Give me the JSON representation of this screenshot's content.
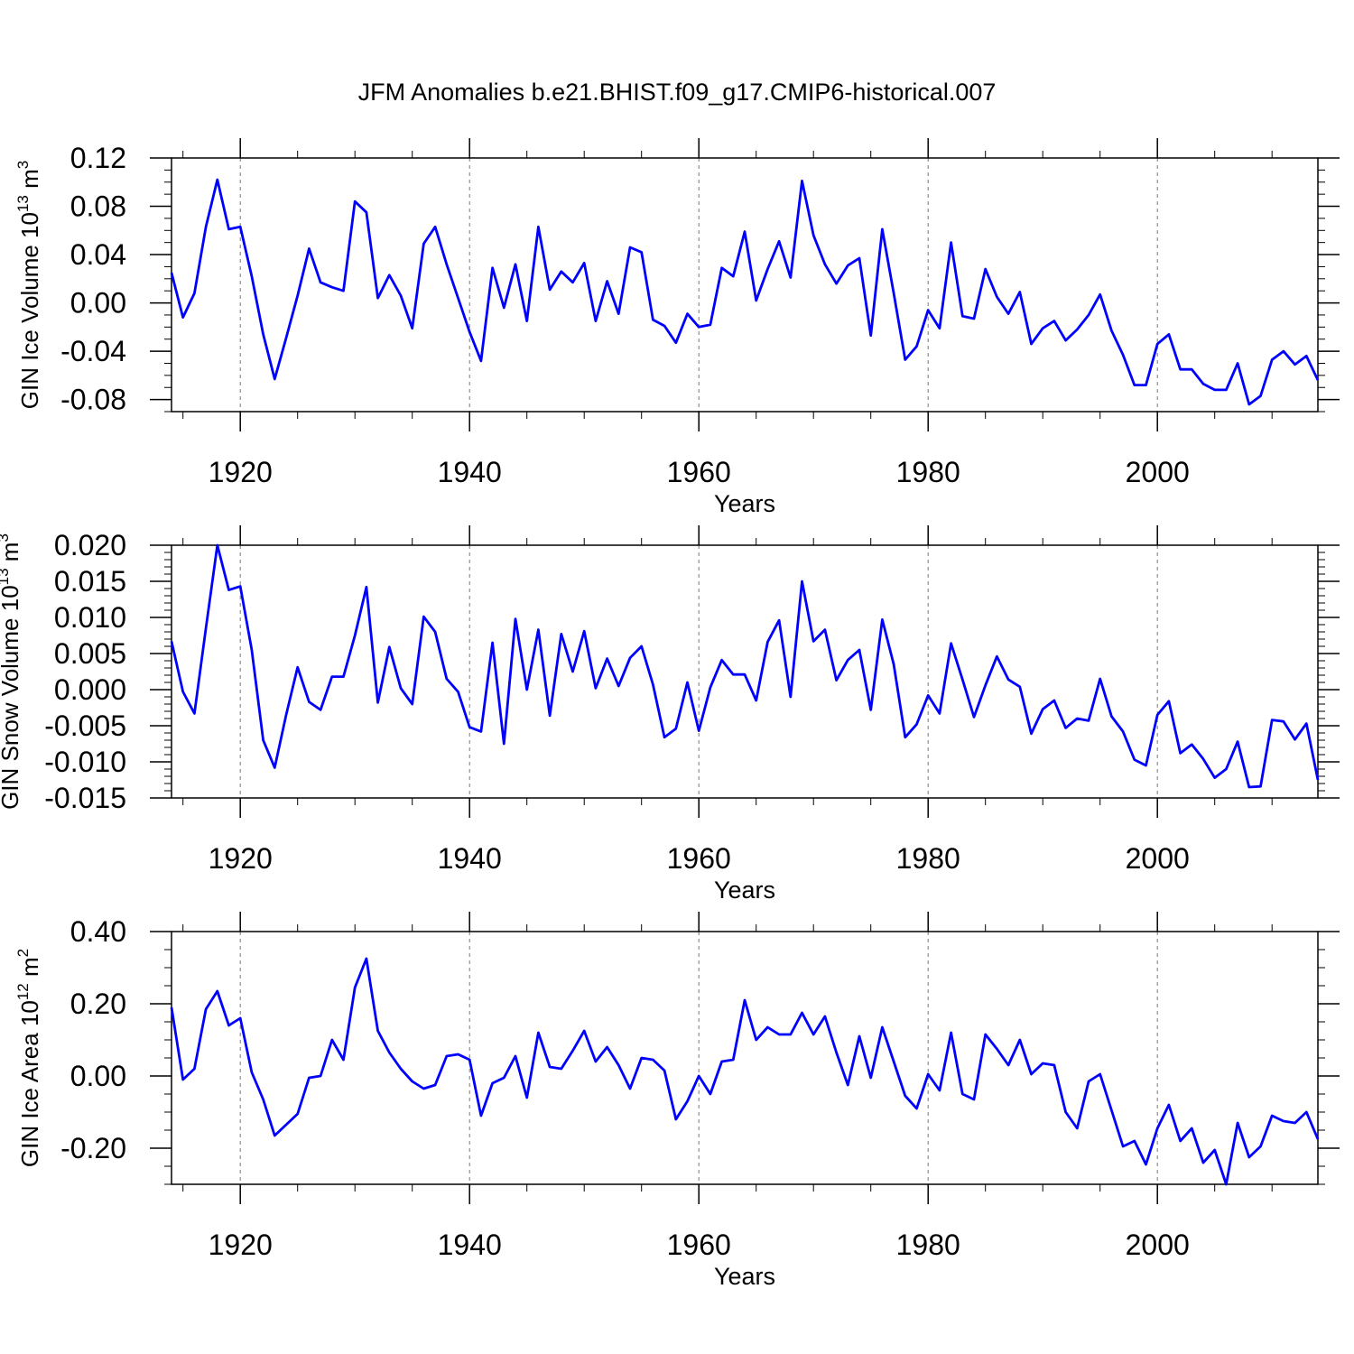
{
  "figure_title": "JFM Anomalies b.e21.BHIST.f09_g17.CMIP6-historical.007",
  "line_color": "#0000ff",
  "chart_data": [
    {
      "type": "line",
      "title": "JFM Anomalies b.e21.BHIST.f09_g17.CMIP6-historical.007",
      "xlabel": "Years",
      "ylabel": "GIN Ice Volume 10",
      "ylabel_exp": "13",
      "ylabel_unit": " m",
      "ylabel_unit_exp": "3",
      "xlim": [
        1914,
        2014
      ],
      "ylim": [
        -0.09,
        0.12
      ],
      "yticks": [
        0.12,
        0.08,
        0.04,
        0.0,
        -0.04,
        -0.08
      ],
      "ytick_labels": [
        "0.12",
        "0.08",
        "0.04",
        "0.00",
        "-0.04",
        "-0.08"
      ],
      "xticks": [
        1920,
        1940,
        1960,
        1980,
        2000
      ],
      "xtick_labels": [
        "1920",
        "1940",
        "1960",
        "1980",
        "2000"
      ],
      "grid": "dashed vertical at major x ticks",
      "series": [
        {
          "name": "GIN Ice Volume",
          "x": [
            1914,
            1915,
            1916,
            1917,
            1918,
            1919,
            1920,
            1921,
            1922,
            1923,
            1924,
            1925,
            1926,
            1927,
            1928,
            1929,
            1930,
            1931,
            1932,
            1933,
            1934,
            1935,
            1936,
            1937,
            1938,
            1939,
            1940,
            1941,
            1942,
            1943,
            1944,
            1945,
            1946,
            1947,
            1948,
            1949,
            1950,
            1951,
            1952,
            1953,
            1954,
            1955,
            1956,
            1957,
            1958,
            1959,
            1960,
            1961,
            1962,
            1963,
            1964,
            1965,
            1966,
            1967,
            1968,
            1969,
            1970,
            1971,
            1972,
            1973,
            1974,
            1975,
            1976,
            1977,
            1978,
            1979,
            1980,
            1981,
            1982,
            1983,
            1984,
            1985,
            1986,
            1987,
            1988,
            1989,
            1990,
            1991,
            1992,
            1993,
            1994,
            1995,
            1996,
            1997,
            1998,
            1999,
            2000,
            2001,
            2002,
            2003,
            2004,
            2005,
            2006,
            2007,
            2008,
            2009,
            2010,
            2011,
            2012,
            2013,
            2014
          ],
          "values": [
            0.025,
            -0.012,
            0.008,
            0.063,
            0.102,
            0.061,
            0.063,
            0.022,
            -0.026,
            -0.063,
            -0.029,
            0.006,
            0.045,
            0.017,
            0.013,
            0.01,
            0.084,
            0.075,
            0.004,
            0.023,
            0.006,
            -0.021,
            0.049,
            0.063,
            0.032,
            0.004,
            -0.024,
            -0.048,
            0.029,
            -0.004,
            0.032,
            -0.015,
            0.063,
            0.011,
            0.026,
            0.017,
            0.033,
            -0.015,
            0.018,
            -0.009,
            0.046,
            0.042,
            -0.014,
            -0.019,
            -0.033,
            -0.009,
            -0.02,
            -0.018,
            0.029,
            0.022,
            0.059,
            0.002,
            0.028,
            0.051,
            0.021,
            0.101,
            0.056,
            0.032,
            0.016,
            0.031,
            0.037,
            -0.027,
            0.061,
            0.008,
            -0.047,
            -0.036,
            -0.006,
            -0.021,
            0.05,
            -0.011,
            -0.013,
            0.028,
            0.005,
            -0.009,
            0.009,
            -0.034,
            -0.021,
            -0.015,
            -0.031,
            -0.022,
            -0.01,
            0.007,
            -0.023,
            -0.043,
            -0.068,
            -0.068,
            -0.034,
            -0.026,
            -0.055,
            -0.055,
            -0.067,
            -0.072,
            -0.072,
            -0.05,
            -0.084,
            -0.077,
            -0.047,
            -0.04,
            -0.051,
            -0.044,
            -0.064
          ]
        }
      ]
    },
    {
      "type": "line",
      "xlabel": "Years",
      "ylabel": "GIN Snow Volume 10",
      "ylabel_exp": "13",
      "ylabel_unit": " m",
      "ylabel_unit_exp": "3",
      "xlim": [
        1914,
        2014
      ],
      "ylim": [
        -0.015,
        0.02
      ],
      "yticks": [
        0.02,
        0.015,
        0.01,
        0.005,
        0.0,
        -0.005,
        -0.01,
        -0.015
      ],
      "ytick_labels": [
        "0.020",
        "0.015",
        "0.010",
        "0.005",
        "0.000",
        "-0.005",
        "-0.010",
        "-0.015"
      ],
      "xticks": [
        1920,
        1940,
        1960,
        1980,
        2000
      ],
      "xtick_labels": [
        "1920",
        "1940",
        "1960",
        "1980",
        "2000"
      ],
      "grid": "dashed vertical at major x ticks",
      "series": [
        {
          "name": "GIN Snow Volume",
          "x": [
            1914,
            1915,
            1916,
            1917,
            1918,
            1919,
            1920,
            1921,
            1922,
            1923,
            1924,
            1925,
            1926,
            1927,
            1928,
            1929,
            1930,
            1931,
            1932,
            1933,
            1934,
            1935,
            1936,
            1937,
            1938,
            1939,
            1940,
            1941,
            1942,
            1943,
            1944,
            1945,
            1946,
            1947,
            1948,
            1949,
            1950,
            1951,
            1952,
            1953,
            1954,
            1955,
            1956,
            1957,
            1958,
            1959,
            1960,
            1961,
            1962,
            1963,
            1964,
            1965,
            1966,
            1967,
            1968,
            1969,
            1970,
            1971,
            1972,
            1973,
            1974,
            1975,
            1976,
            1977,
            1978,
            1979,
            1980,
            1981,
            1982,
            1983,
            1984,
            1985,
            1986,
            1987,
            1988,
            1989,
            1990,
            1991,
            1992,
            1993,
            1994,
            1995,
            1996,
            1997,
            1998,
            1999,
            2000,
            2001,
            2002,
            2003,
            2004,
            2005,
            2006,
            2007,
            2008,
            2009,
            2010,
            2011,
            2012,
            2013,
            2014
          ],
          "values": [
            0.0067,
            -0.0003,
            -0.0033,
            0.0085,
            0.02,
            0.0138,
            0.0143,
            0.0055,
            -0.007,
            -0.0108,
            -0.0035,
            0.0031,
            -0.0017,
            -0.0028,
            0.0018,
            0.0018,
            0.0075,
            0.0142,
            -0.0018,
            0.0059,
            0.0002,
            -0.002,
            0.0101,
            0.008,
            0.0015,
            -0.0003,
            -0.0052,
            -0.0058,
            0.0065,
            -0.0075,
            0.0098,
            0.0,
            0.0083,
            -0.0036,
            0.0077,
            0.0025,
            0.0081,
            0.0002,
            0.0043,
            0.0005,
            0.0044,
            0.006,
            0.0007,
            -0.0066,
            -0.0054,
            0.001,
            -0.0057,
            0.0003,
            0.0041,
            0.0021,
            0.0021,
            -0.0015,
            0.0066,
            0.0096,
            -0.001,
            0.015,
            0.0067,
            0.0083,
            0.0013,
            0.0041,
            0.0055,
            -0.0028,
            0.0097,
            0.0035,
            -0.0066,
            -0.0048,
            -0.0008,
            -0.0033,
            0.0064,
            0.0014,
            -0.0038,
            0.0006,
            0.0046,
            0.0014,
            0.0004,
            -0.0061,
            -0.0027,
            -0.0015,
            -0.0053,
            -0.004,
            -0.0043,
            0.0015,
            -0.0037,
            -0.0058,
            -0.0097,
            -0.0105,
            -0.0035,
            -0.0016,
            -0.0088,
            -0.0076,
            -0.0096,
            -0.0122,
            -0.011,
            -0.0072,
            -0.0135,
            -0.0134,
            -0.0042,
            -0.0044,
            -0.0069,
            -0.0047,
            -0.0125
          ]
        }
      ]
    },
    {
      "type": "line",
      "xlabel": "Years",
      "ylabel": "GIN Ice Area 10",
      "ylabel_exp": "12",
      "ylabel_unit": " m",
      "ylabel_unit_exp": "2",
      "xlim": [
        1914,
        2014
      ],
      "ylim": [
        -0.3,
        0.4
      ],
      "yticks": [
        0.4,
        0.2,
        0.0,
        -0.2
      ],
      "ytick_labels": [
        "0.40",
        "0.20",
        "0.00",
        "-0.20"
      ],
      "xticks": [
        1920,
        1940,
        1960,
        1980,
        2000
      ],
      "xtick_labels": [
        "1920",
        "1940",
        "1960",
        "1980",
        "2000"
      ],
      "grid": "dashed vertical at major x ticks",
      "series": [
        {
          "name": "GIN Ice Area",
          "x": [
            1914,
            1915,
            1916,
            1917,
            1918,
            1919,
            1920,
            1921,
            1922,
            1923,
            1924,
            1925,
            1926,
            1927,
            1928,
            1929,
            1930,
            1931,
            1932,
            1933,
            1934,
            1935,
            1936,
            1937,
            1938,
            1939,
            1940,
            1941,
            1942,
            1943,
            1944,
            1945,
            1946,
            1947,
            1948,
            1949,
            1950,
            1951,
            1952,
            1953,
            1954,
            1955,
            1956,
            1957,
            1958,
            1959,
            1960,
            1961,
            1962,
            1963,
            1964,
            1965,
            1966,
            1967,
            1968,
            1969,
            1970,
            1971,
            1972,
            1973,
            1974,
            1975,
            1976,
            1977,
            1978,
            1979,
            1980,
            1981,
            1982,
            1983,
            1984,
            1985,
            1986,
            1987,
            1988,
            1989,
            1990,
            1991,
            1992,
            1993,
            1994,
            1995,
            1996,
            1997,
            1998,
            1999,
            2000,
            2001,
            2002,
            2003,
            2004,
            2005,
            2006,
            2007,
            2008,
            2009,
            2010,
            2011,
            2012,
            2013,
            2014
          ],
          "values": [
            0.19,
            -0.01,
            0.02,
            0.185,
            0.235,
            0.14,
            0.16,
            0.01,
            -0.065,
            -0.165,
            -0.135,
            -0.105,
            -0.005,
            0.0,
            0.1,
            0.045,
            0.245,
            0.325,
            0.125,
            0.065,
            0.02,
            -0.015,
            -0.035,
            -0.025,
            0.055,
            0.06,
            0.045,
            -0.11,
            -0.02,
            -0.005,
            0.055,
            -0.06,
            0.12,
            0.025,
            0.02,
            0.07,
            0.125,
            0.04,
            0.08,
            0.03,
            -0.035,
            0.05,
            0.045,
            0.015,
            -0.12,
            -0.07,
            0.0,
            -0.05,
            0.04,
            0.045,
            0.21,
            0.1,
            0.135,
            0.115,
            0.115,
            0.175,
            0.115,
            0.165,
            0.065,
            -0.025,
            0.11,
            -0.005,
            0.135,
            0.04,
            -0.055,
            -0.09,
            0.005,
            -0.04,
            0.12,
            -0.05,
            -0.065,
            0.115,
            0.075,
            0.03,
            0.1,
            0.005,
            0.035,
            0.03,
            -0.1,
            -0.145,
            -0.015,
            0.005,
            -0.095,
            -0.195,
            -0.18,
            -0.245,
            -0.145,
            -0.08,
            -0.18,
            -0.145,
            -0.24,
            -0.205,
            -0.3,
            -0.13,
            -0.225,
            -0.195,
            -0.11,
            -0.125,
            -0.13,
            -0.1,
            -0.175
          ]
        }
      ]
    }
  ]
}
